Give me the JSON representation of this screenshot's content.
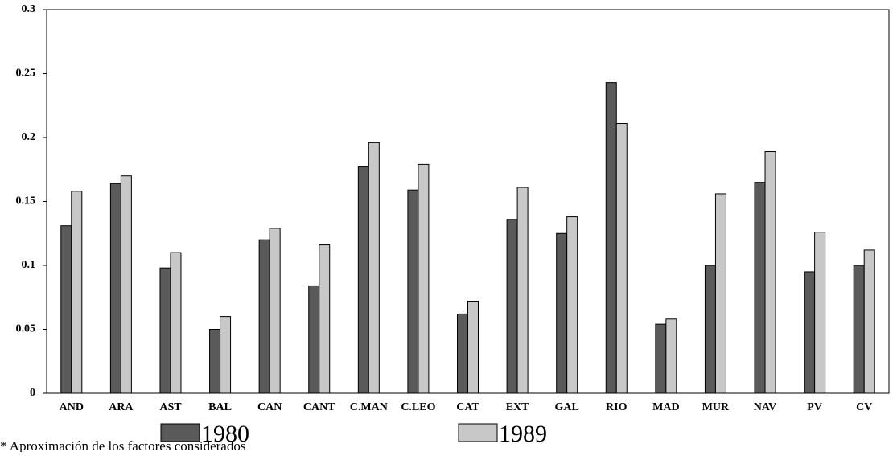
{
  "chart_data": {
    "type": "bar",
    "categories": [
      "AND",
      "ARA",
      "AST",
      "BAL",
      "CAN",
      "CANT",
      "C.MAN",
      "C.LEO",
      "CAT",
      "EXT",
      "GAL",
      "RIO",
      "MAD",
      "MUR",
      "NAV",
      "PV",
      "CV"
    ],
    "series": [
      {
        "name": "1980",
        "color": "#5a5a5a",
        "values": [
          0.131,
          0.164,
          0.098,
          0.05,
          0.12,
          0.084,
          0.177,
          0.159,
          0.062,
          0.136,
          0.125,
          0.243,
          0.054,
          0.1,
          0.165,
          0.095,
          0.1
        ]
      },
      {
        "name": "1989",
        "color": "#c8c8c8",
        "values": [
          0.158,
          0.17,
          0.11,
          0.06,
          0.129,
          0.116,
          0.196,
          0.179,
          0.072,
          0.161,
          0.138,
          0.211,
          0.058,
          0.156,
          0.189,
          0.126,
          0.112
        ]
      }
    ],
    "ylim": [
      0,
      0.3
    ],
    "yticks": [
      0,
      0.05,
      0.1,
      0.15,
      0.2,
      0.25,
      0.3
    ],
    "legend": "bottom",
    "footnote": "* Aproximación de los factores considerados"
  }
}
